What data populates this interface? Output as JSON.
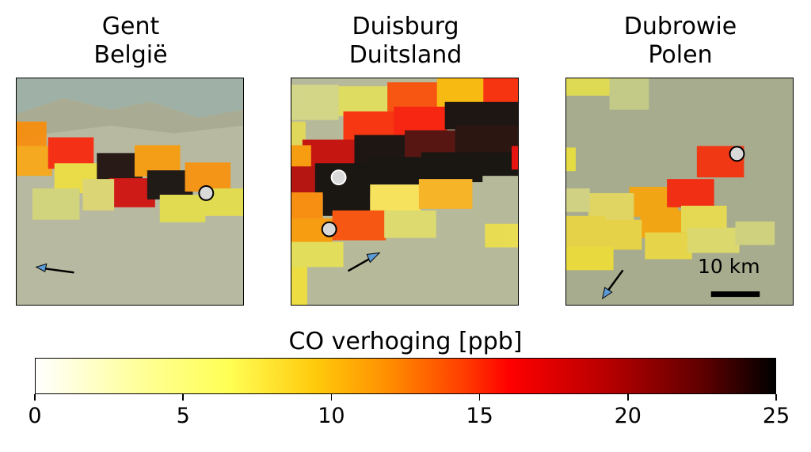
{
  "chart_data": {
    "type": "heatmap",
    "panels": [
      {
        "name": "gent",
        "title_line1": "Gent",
        "title_line2": "België"
      },
      {
        "name": "duisburg",
        "title_line1": "Duisburg",
        "title_line2": "Duitsland"
      },
      {
        "name": "dubrowie",
        "title_line1": "Dubrowie",
        "title_line2": "Polen"
      }
    ],
    "scale_bar_label": "10 km",
    "colorbar": {
      "label": "CO verhoging [ppb]",
      "range": [
        0,
        25
      ],
      "ticks": [
        "0",
        "5",
        "10",
        "15",
        "20",
        "25"
      ],
      "colormap": "hot_r"
    }
  }
}
